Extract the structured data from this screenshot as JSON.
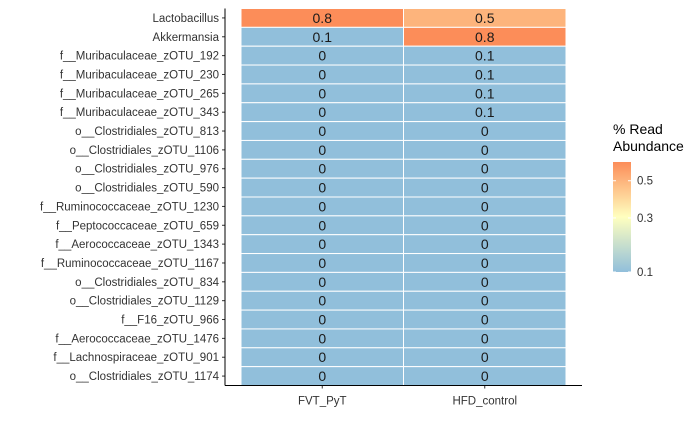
{
  "chart_data": {
    "type": "heatmap",
    "x": [
      "FVT_PyT",
      "HFD_control"
    ],
    "y": [
      "Lactobacillus",
      "Akkermansia",
      "f__Muribaculaceae_zOTU_192",
      "f__Muribaculaceae_zOTU_230",
      "f__Muribaculaceae_zOTU_265",
      "f__Muribaculaceae_zOTU_343",
      "o__Clostridiales_zOTU_813",
      "o__Clostridiales_zOTU_1106",
      "o__Clostridiales_zOTU_976",
      "o__Clostridiales_zOTU_590",
      "f__Ruminococcaceae_zOTU_1230",
      "f__Peptococcaceae_zOTU_659",
      "f__Aerococcaceae_zOTU_1343",
      "f__Ruminococcaceae_zOTU_1167",
      "o__Clostridiales_zOTU_834",
      "o__Clostridiales_zOTU_1129",
      "f__F16_zOTU_966",
      "f__Aerococcaceae_zOTU_1476",
      "f__Lachnospiraceae_zOTU_901",
      "o__Clostridiales_zOTU_1174"
    ],
    "values": [
      [
        0.8,
        0.5
      ],
      [
        0.1,
        0.8
      ],
      [
        0,
        0.1
      ],
      [
        0,
        0.1
      ],
      [
        0,
        0.1
      ],
      [
        0,
        0.1
      ],
      [
        0,
        0
      ],
      [
        0,
        0
      ],
      [
        0,
        0
      ],
      [
        0,
        0
      ],
      [
        0,
        0
      ],
      [
        0,
        0
      ],
      [
        0,
        0
      ],
      [
        0,
        0
      ],
      [
        0,
        0
      ],
      [
        0,
        0
      ],
      [
        0,
        0
      ],
      [
        0,
        0
      ],
      [
        0,
        0
      ],
      [
        0,
        0
      ]
    ],
    "color_scale": {
      "type": "sqrt",
      "domain": [
        0.1,
        0.62
      ],
      "colors": [
        "#91bfdb",
        "#ffffbf",
        "#fc8d59"
      ],
      "low_color": "#91bfdb"
    },
    "legend": {
      "title_lines": [
        "% Read",
        "Abundance"
      ],
      "ticks": [
        0.1,
        0.3,
        0.5
      ],
      "position": "right"
    },
    "grid": false
  }
}
